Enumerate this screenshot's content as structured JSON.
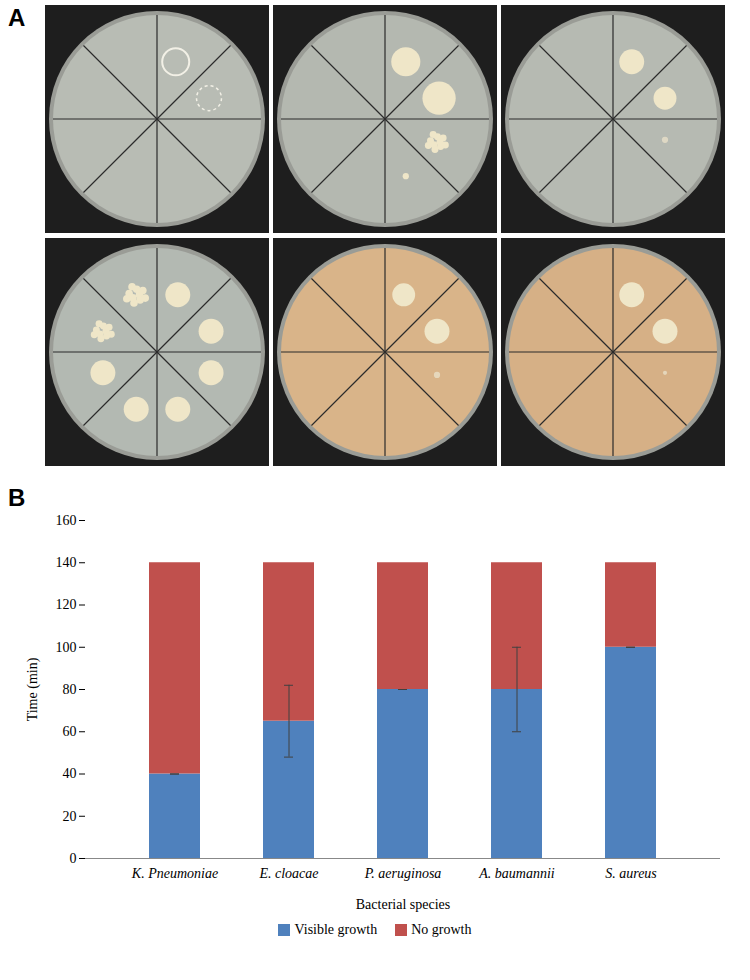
{
  "panels": [
    "A",
    "B"
  ],
  "chart_data": {
    "type": "bar",
    "stacked": true,
    "categories": [
      "K. Pneumoniae",
      "E. cloacae",
      "P. aeruginosa",
      "A. baumannii",
      "S. aureus"
    ],
    "series": [
      {
        "name": "Visible growth",
        "color": "#4f81bd",
        "values": [
          40,
          65,
          80,
          80,
          100
        ],
        "errors": [
          0,
          17,
          0,
          20,
          0
        ]
      },
      {
        "name": "No growth",
        "color": "#c0504d",
        "values": [
          100,
          75,
          60,
          60,
          40
        ]
      }
    ],
    "xlabel": "Bacterial species",
    "ylabel": "Time (min)",
    "ylim": [
      0,
      160
    ],
    "yticks": [
      0,
      20,
      40,
      60,
      80,
      100,
      120,
      140,
      160
    ],
    "grid": false,
    "legend": "bottom"
  }
}
